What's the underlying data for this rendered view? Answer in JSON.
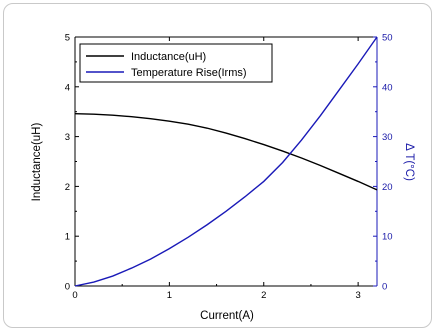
{
  "chart_data": {
    "type": "line",
    "xlabel": "Current(A)",
    "ylabel": "Inductance(uH)",
    "ylabel_right": "Δ T(°C)",
    "xlim": [
      0,
      3.2
    ],
    "ylim": [
      0,
      5
    ],
    "ylim_right": [
      0,
      50
    ],
    "x_ticks": [
      "0",
      "1",
      "2",
      "3"
    ],
    "y_ticks": [
      "0",
      "1",
      "2",
      "3",
      "4",
      "5"
    ],
    "y_ticks_right": [
      "0",
      "10",
      "20",
      "30",
      "40",
      "50"
    ],
    "legend_position": "top-left",
    "grid": false,
    "series": [
      {
        "name": "Inductance(uH)",
        "axis": "left",
        "color": "#000000",
        "x": [
          0,
          0.2,
          0.4,
          0.6,
          0.8,
          1.0,
          1.2,
          1.4,
          1.6,
          1.8,
          2.0,
          2.2,
          2.4,
          2.6,
          2.8,
          3.0,
          3.2
        ],
        "y": [
          3.46,
          3.45,
          3.43,
          3.4,
          3.36,
          3.31,
          3.25,
          3.17,
          3.07,
          2.96,
          2.84,
          2.71,
          2.57,
          2.42,
          2.26,
          2.1,
          1.93
        ]
      },
      {
        "name": "Temperature Rise(Irms)",
        "axis": "right",
        "color": "#1a1ab8",
        "x": [
          0,
          0.2,
          0.4,
          0.6,
          0.8,
          1.0,
          1.2,
          1.4,
          1.6,
          1.8,
          2.0,
          2.2,
          2.4,
          2.6,
          2.8,
          3.0,
          3.2
        ],
        "y": [
          0,
          0.8,
          2.0,
          3.6,
          5.4,
          7.5,
          9.8,
          12.3,
          15.0,
          17.9,
          21.0,
          24.8,
          29.3,
          34.2,
          39.4,
          44.6,
          50.0
        ]
      }
    ]
  }
}
